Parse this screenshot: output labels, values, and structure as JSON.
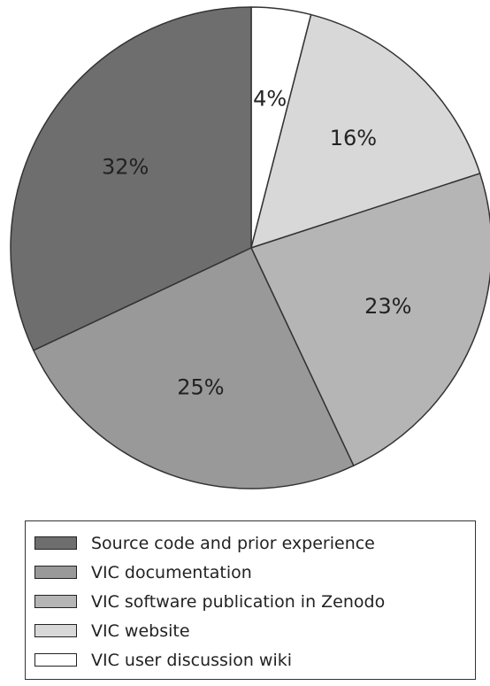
{
  "chart_data": {
    "type": "pie",
    "title": "",
    "start_angle_deg": 0,
    "direction": "clockwise",
    "slices": [
      {
        "label": "VIC user discussion wiki",
        "value": 4,
        "value_label": "4%",
        "color": "#ffffff"
      },
      {
        "label": "VIC website",
        "value": 16,
        "value_label": "16%",
        "color": "#d8d8d8"
      },
      {
        "label": "VIC software publication in Zenodo",
        "value": 23,
        "value_label": "23%",
        "color": "#b5b5b5"
      },
      {
        "label": "VIC documentation",
        "value": 25,
        "value_label": "25%",
        "color": "#999999"
      },
      {
        "label": "Source code and prior experience",
        "value": 32,
        "value_label": "32%",
        "color": "#6e6e6e"
      }
    ],
    "legend": {
      "placement": "bottom",
      "entries": [
        {
          "label": "Source code and prior experience",
          "color": "#6e6e6e"
        },
        {
          "label": "VIC documentation",
          "color": "#999999"
        },
        {
          "label": "VIC software publication in Zenodo",
          "color": "#b5b5b5"
        },
        {
          "label": "VIC website",
          "color": "#d8d8d8"
        },
        {
          "label": "VIC user discussion wiki",
          "color": "#ffffff"
        }
      ]
    }
  }
}
